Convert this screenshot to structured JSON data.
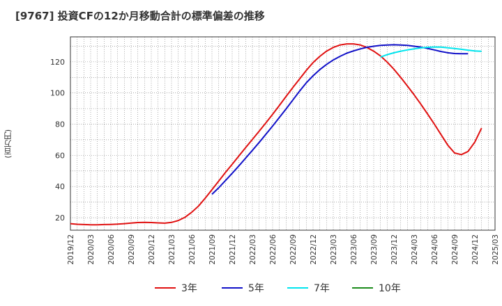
{
  "chart_data": {
    "type": "line",
    "title": "[9767]  投資CFの12か月移動合計の標準偏差の推移",
    "ylabel": "(百万円)",
    "xlabel": "",
    "x_ticks": [
      "2019/12",
      "2020/03",
      "2020/06",
      "2020/09",
      "2020/12",
      "2021/03",
      "2021/06",
      "2021/09",
      "2021/12",
      "2022/03",
      "2022/06",
      "2022/09",
      "2022/12",
      "2023/03",
      "2023/06",
      "2023/09",
      "2023/12",
      "2024/03",
      "2024/06",
      "2024/09",
      "2024/12",
      "2025/03"
    ],
    "y_ticks": [
      20,
      40,
      60,
      80,
      100,
      120
    ],
    "ylim": [
      12,
      136
    ],
    "grid": true,
    "legend_position": "bottom",
    "series": [
      {
        "name": "3年",
        "color": "#e01010",
        "points": [
          [
            "2019/12",
            16.2
          ],
          [
            "2020/01",
            15.8
          ],
          [
            "2020/02",
            15.6
          ],
          [
            "2020/03",
            15.5
          ],
          [
            "2020/04",
            15.5
          ],
          [
            "2020/05",
            15.6
          ],
          [
            "2020/06",
            15.7
          ],
          [
            "2020/07",
            15.9
          ],
          [
            "2020/08",
            16.2
          ],
          [
            "2020/09",
            16.6
          ],
          [
            "2020/10",
            16.9
          ],
          [
            "2020/11",
            17.0
          ],
          [
            "2020/12",
            16.9
          ],
          [
            "2020/01b",
            16.7
          ],
          [
            "2021/02",
            16.5
          ],
          [
            "2021/03",
            17.0
          ],
          [
            "2021/04",
            18.2
          ],
          [
            "2021/05",
            20.3
          ],
          [
            "2021/06",
            23.5
          ],
          [
            "2021/07",
            27.5
          ],
          [
            "2021/08",
            32.5
          ],
          [
            "2021/09",
            38.0
          ],
          [
            "2021/10",
            43.5
          ],
          [
            "2021/11",
            49.0
          ],
          [
            "2021/12",
            54.3
          ],
          [
            "2022/01",
            59.7
          ],
          [
            "2022/02",
            65.0
          ],
          [
            "2022/03",
            70.2
          ],
          [
            "2022/04",
            75.5
          ],
          [
            "2022/05",
            80.8
          ],
          [
            "2022/06",
            86.3
          ],
          [
            "2022/07",
            92.0
          ],
          [
            "2022/08",
            97.8
          ],
          [
            "2022/09",
            103.5
          ],
          [
            "2022/10",
            109.0
          ],
          [
            "2022/11",
            114.5
          ],
          [
            "2022/12",
            119.5
          ],
          [
            "2023/01",
            123.5
          ],
          [
            "2023/02",
            126.8
          ],
          [
            "2023/03",
            129.2
          ],
          [
            "2023/04",
            130.8
          ],
          [
            "2023/05",
            131.5
          ],
          [
            "2023/06",
            131.5
          ],
          [
            "2023/07",
            130.8
          ],
          [
            "2023/08",
            129.2
          ],
          [
            "2023/09",
            126.8
          ],
          [
            "2023/10",
            123.8
          ],
          [
            "2023/11",
            119.8
          ],
          [
            "2023/12",
            115.2
          ],
          [
            "2024/01",
            110.0
          ],
          [
            "2024/02",
            104.5
          ],
          [
            "2024/03",
            98.8
          ],
          [
            "2024/04",
            92.8
          ],
          [
            "2024/05",
            86.5
          ],
          [
            "2024/06",
            80.0
          ],
          [
            "2024/07",
            73.2
          ],
          [
            "2024/08",
            66.5
          ],
          [
            "2024/09",
            61.5
          ],
          [
            "2024/10",
            60.5
          ],
          [
            "2024/11",
            62.5
          ],
          [
            "2024/12",
            68.5
          ],
          [
            "2025/01",
            77.5
          ]
        ]
      },
      {
        "name": "5年",
        "color": "#1010c8",
        "points": [
          [
            "2021/09",
            35.0
          ],
          [
            "2021/10",
            39.2
          ],
          [
            "2021/11",
            43.8
          ],
          [
            "2021/12",
            48.5
          ],
          [
            "2022/01",
            53.3
          ],
          [
            "2022/02",
            58.2
          ],
          [
            "2022/03",
            63.2
          ],
          [
            "2022/04",
            68.3
          ],
          [
            "2022/05",
            73.5
          ],
          [
            "2022/06",
            78.8
          ],
          [
            "2022/07",
            84.3
          ],
          [
            "2022/08",
            89.8
          ],
          [
            "2022/09",
            95.5
          ],
          [
            "2022/10",
            101.2
          ],
          [
            "2022/11",
            106.5
          ],
          [
            "2022/12",
            111.0
          ],
          [
            "2023/01",
            115.0
          ],
          [
            "2023/02",
            118.3
          ],
          [
            "2023/03",
            121.2
          ],
          [
            "2023/04",
            123.5
          ],
          [
            "2023/05",
            125.5
          ],
          [
            "2023/06",
            127.0
          ],
          [
            "2023/07",
            128.3
          ],
          [
            "2023/08",
            129.3
          ],
          [
            "2023/09",
            130.0
          ],
          [
            "2023/10",
            130.5
          ],
          [
            "2023/11",
            130.8
          ],
          [
            "2023/12",
            130.9
          ],
          [
            "2024/01",
            130.8
          ],
          [
            "2024/02",
            130.5
          ],
          [
            "2024/03",
            130.0
          ],
          [
            "2024/04",
            129.4
          ],
          [
            "2024/05",
            128.6
          ],
          [
            "2024/06",
            127.6
          ],
          [
            "2024/07",
            126.6
          ],
          [
            "2024/08",
            125.8
          ],
          [
            "2024/09",
            125.3
          ],
          [
            "2024/10",
            125.2
          ],
          [
            "2024/11",
            125.2
          ]
        ]
      },
      {
        "name": "7年",
        "color": "#00e5ee",
        "points": [
          [
            "2023/10",
            123.0
          ],
          [
            "2023/11",
            124.6
          ],
          [
            "2023/12",
            125.8
          ],
          [
            "2024/01",
            126.8
          ],
          [
            "2024/02",
            127.6
          ],
          [
            "2024/03",
            128.3
          ],
          [
            "2024/04",
            128.9
          ],
          [
            "2024/05",
            129.3
          ],
          [
            "2024/06",
            129.5
          ],
          [
            "2024/07",
            129.4
          ],
          [
            "2024/08",
            129.0
          ],
          [
            "2024/09",
            128.5
          ],
          [
            "2024/10",
            128.0
          ],
          [
            "2024/11",
            127.5
          ],
          [
            "2024/12",
            127.0
          ],
          [
            "2025/01",
            126.7
          ]
        ]
      },
      {
        "name": "10年",
        "color": "#1a8a1a",
        "points": []
      }
    ]
  }
}
